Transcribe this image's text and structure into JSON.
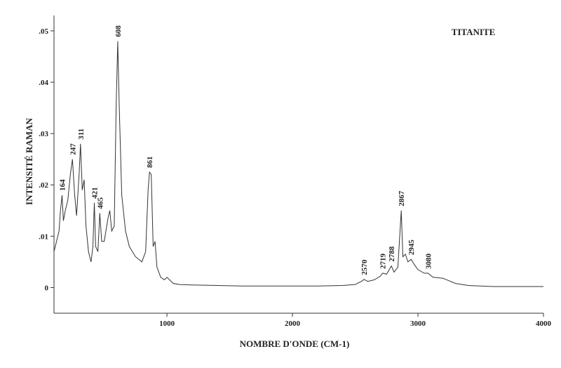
{
  "chart_data": {
    "type": "line",
    "title": "TITANITE",
    "xlabel": "NOMBRE D'ONDE (CM-1)",
    "ylabel": "INTENSITÉ RAMAN",
    "x": [
      100,
      120,
      140,
      150,
      164,
      175,
      190,
      210,
      230,
      247,
      265,
      280,
      300,
      311,
      325,
      340,
      355,
      375,
      395,
      410,
      421,
      432,
      450,
      465,
      480,
      500,
      530,
      545,
      560,
      580,
      595,
      608,
      620,
      640,
      670,
      700,
      750,
      800,
      830,
      850,
      861,
      875,
      890,
      905,
      920,
      950,
      980,
      1000,
      1050,
      1100,
      1200,
      1400,
      1600,
      1800,
      2000,
      2200,
      2400,
      2500,
      2550,
      2570,
      2600,
      2650,
      2700,
      2719,
      2750,
      2788,
      2810,
      2840,
      2867,
      2880,
      2900,
      2920,
      2945,
      2970,
      3000,
      3050,
      3080,
      3120,
      3200,
      3300,
      3400,
      3600,
      3800,
      4000
    ],
    "series": [
      {
        "color": "#333333",
        "values": [
          0.007,
          0.009,
          0.011,
          0.0145,
          0.018,
          0.013,
          0.015,
          0.017,
          0.022,
          0.025,
          0.018,
          0.014,
          0.022,
          0.028,
          0.019,
          0.021,
          0.012,
          0.007,
          0.005,
          0.008,
          0.0165,
          0.008,
          0.007,
          0.0145,
          0.009,
          0.009,
          0.0135,
          0.015,
          0.011,
          0.012,
          0.035,
          0.048,
          0.035,
          0.018,
          0.011,
          0.008,
          0.006,
          0.005,
          0.007,
          0.019,
          0.0225,
          0.022,
          0.008,
          0.009,
          0.004,
          0.002,
          0.0015,
          0.002,
          0.0008,
          0.0006,
          0.0005,
          0.0004,
          0.0003,
          0.0003,
          0.0003,
          0.0003,
          0.0004,
          0.0006,
          0.0012,
          0.0016,
          0.0012,
          0.0015,
          0.0022,
          0.0028,
          0.0026,
          0.0042,
          0.003,
          0.004,
          0.015,
          0.006,
          0.0065,
          0.005,
          0.0055,
          0.0045,
          0.0035,
          0.0028,
          0.0028,
          0.002,
          0.0018,
          0.0008,
          0.0004,
          0.0002,
          0.0002,
          0.0002
        ]
      }
    ],
    "peaks": [
      164,
      247,
      311,
      421,
      465,
      608,
      861,
      2570,
      2719,
      2788,
      2867,
      2945,
      3080
    ],
    "xlim": [
      100,
      4000
    ],
    "xticks": [
      1000,
      2000,
      3000,
      4000
    ],
    "ylim": [
      -0.005,
      0.053
    ],
    "yticks": [
      0,
      {
        "value": 0.01,
        "label": ".01"
      },
      {
        "value": 0.02,
        "label": ".02"
      },
      {
        "value": 0.03,
        "label": ".03"
      },
      {
        "value": 0.04,
        "label": ".04"
      },
      {
        "value": 0.05,
        "label": ".05"
      }
    ]
  }
}
